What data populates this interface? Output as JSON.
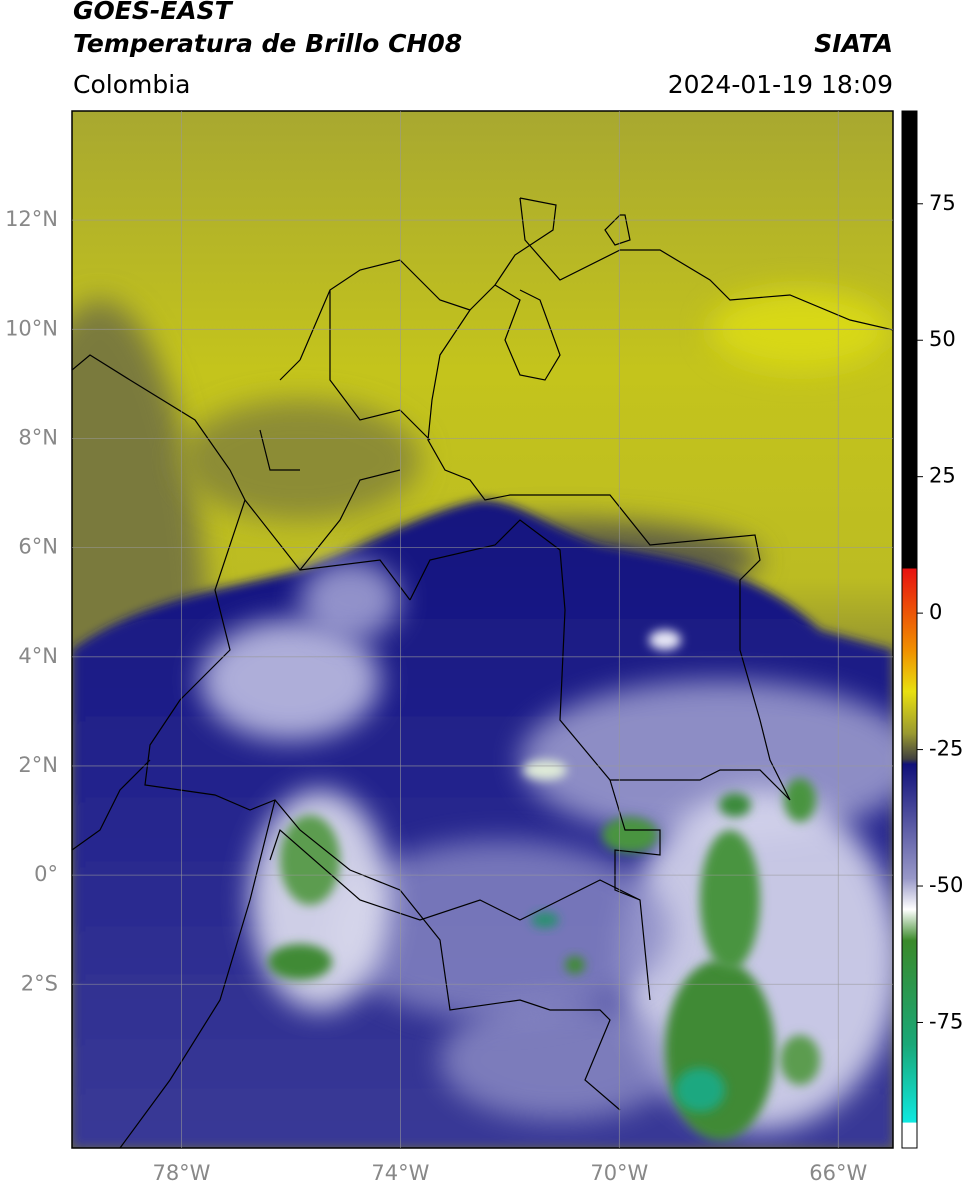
{
  "header": {
    "title": "GOES-EAST",
    "subtitle": "Temperatura de Brillo CH08",
    "region": "Colombia",
    "source": "SIATA",
    "datetime": "2024-01-19 18:09"
  },
  "map": {
    "xlim": [
      -80,
      -65
    ],
    "ylim": [
      -5,
      14
    ],
    "xticks": [
      {
        "value": -78,
        "label": "78°W"
      },
      {
        "value": -74,
        "label": "74°W"
      },
      {
        "value": -70,
        "label": "70°W"
      },
      {
        "value": -66,
        "label": "66°W"
      }
    ],
    "yticks": [
      {
        "value": 12,
        "label": "12°N"
      },
      {
        "value": 10,
        "label": "10°N"
      },
      {
        "value": 8,
        "label": "8°N"
      },
      {
        "value": 6,
        "label": "6°N"
      },
      {
        "value": 4,
        "label": "4°N"
      },
      {
        "value": 2,
        "label": "2°N"
      },
      {
        "value": 0,
        "label": "0°"
      },
      {
        "value": -2,
        "label": "2°S"
      }
    ],
    "grid": true
  },
  "colorbar": {
    "ylim": [
      -98,
      92
    ],
    "yticks": [
      -75,
      -50,
      -25,
      0,
      25,
      50,
      75
    ]
  }
}
